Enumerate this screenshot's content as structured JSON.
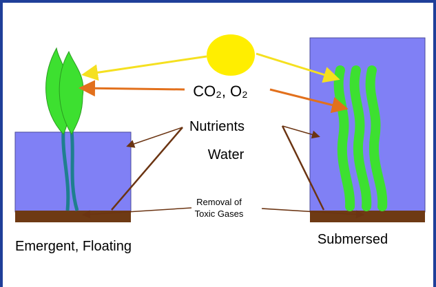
{
  "diagram": {
    "labels": {
      "gases": "CO₂, O₂",
      "nutrients": "Nutrients",
      "water": "Water",
      "removal": [
        "Removal of",
        "Toxic Gases"
      ],
      "emergent": "Emergent, Floating",
      "submersed": "Submersed"
    }
  }
}
